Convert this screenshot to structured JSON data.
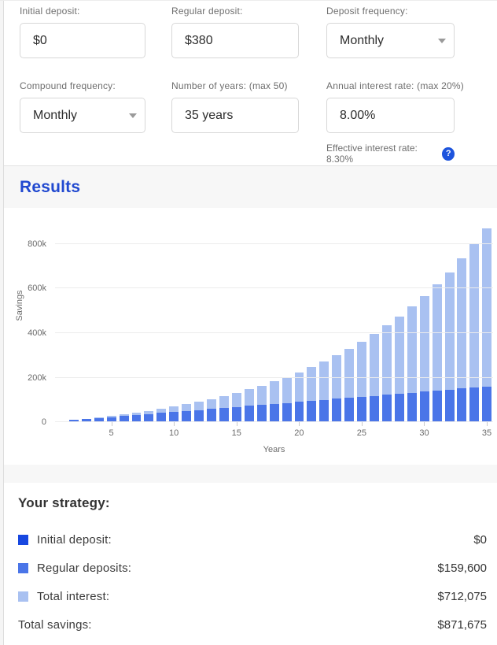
{
  "form": {
    "fields": {
      "initial_deposit": {
        "label": "Initial deposit:",
        "value": "$0"
      },
      "regular_deposit": {
        "label": "Regular deposit:",
        "value": "$380"
      },
      "deposit_frequency": {
        "label": "Deposit frequency:",
        "value": "Monthly"
      },
      "compound_frequency": {
        "label": "Compound frequency:",
        "value": "Monthly"
      },
      "number_of_years": {
        "label": "Number of years: (max 50)",
        "value": "35 years"
      },
      "annual_interest_rate": {
        "label": "Annual interest rate: (max 20%)",
        "value": "8.00%"
      }
    },
    "effective_rate_note": "Effective interest rate: 8.30%",
    "help_icon": "?"
  },
  "results": {
    "title": "Results"
  },
  "chart_data": {
    "type": "bar",
    "stacked": true,
    "xlabel": "Years",
    "ylabel": "Savings",
    "x": [
      1,
      2,
      3,
      4,
      5,
      6,
      7,
      8,
      9,
      10,
      11,
      12,
      13,
      14,
      15,
      16,
      17,
      18,
      19,
      20,
      21,
      22,
      23,
      24,
      25,
      26,
      27,
      28,
      29,
      30,
      31,
      32,
      33,
      34,
      35
    ],
    "series": [
      {
        "name": "Regular deposits",
        "color": "#4a75e8",
        "values": [
          4560,
          9120,
          13680,
          18240,
          22800,
          27360,
          31920,
          36480,
          41040,
          45600,
          50160,
          54720,
          59280,
          63840,
          68400,
          72960,
          77520,
          82080,
          86640,
          91200,
          95760,
          100320,
          104880,
          109440,
          114000,
          118560,
          123120,
          127680,
          132240,
          136800,
          141360,
          145920,
          150480,
          155040,
          159600
        ]
      },
      {
        "name": "Total interest",
        "color": "#a9c1f1",
        "values": [
          171,
          735,
          1724,
          3173,
          5121,
          7610,
          10684,
          14391,
          18785,
          23922,
          29864,
          36677,
          44435,
          53215,
          63102,
          74188,
          86573,
          100365,
          115679,
          132643,
          151394,
          172079,
          194861,
          219911,
          247419,
          277589,
          310642,
          346816,
          386373,
          429590,
          476773,
          528251,
          584380,
          645546,
          712075
        ]
      }
    ],
    "totals": [
      4731,
      9855,
      15404,
      21413,
      27921,
      34970,
      42604,
      50871,
      59825,
      69522,
      80024,
      91397,
      103715,
      117055,
      131502,
      147148,
      164093,
      182445,
      202319,
      223843,
      247154,
      272399,
      299741,
      329351,
      361419,
      396149,
      433762,
      474496,
      518613,
      566390,
      618133,
      674171,
      734860,
      800586,
      871675
    ],
    "y_ticks": {
      "values": [
        0,
        200000,
        400000,
        600000,
        800000
      ],
      "labels": [
        "0",
        "200k",
        "400k",
        "600k",
        "800k"
      ]
    },
    "x_ticks": [
      5,
      10,
      15,
      20,
      25,
      30,
      35
    ],
    "ylim": [
      0,
      945000
    ],
    "grid": true,
    "legend": "none"
  },
  "strategy": {
    "title": "Your strategy:",
    "rows": [
      {
        "label": "Initial deposit:",
        "value": "$0",
        "swatch": "#1747e0"
      },
      {
        "label": "Regular deposits:",
        "value": "$159,600",
        "swatch": "#4a75e8"
      },
      {
        "label": "Total interest:",
        "value": "$712,075",
        "swatch": "#a9c1f1"
      },
      {
        "label": "Total savings:",
        "value": "$871,675",
        "swatch": null
      }
    ]
  },
  "colors": {
    "accent_blue": "#2149d0",
    "help_icon_blue": "#1d54dd",
    "bar_deposits": "#4a75e8",
    "bar_interest": "#a9c1f1",
    "swatch_initial": "#1747e0",
    "band_gray": "#f7f7f7",
    "gridline": "#ececec"
  }
}
